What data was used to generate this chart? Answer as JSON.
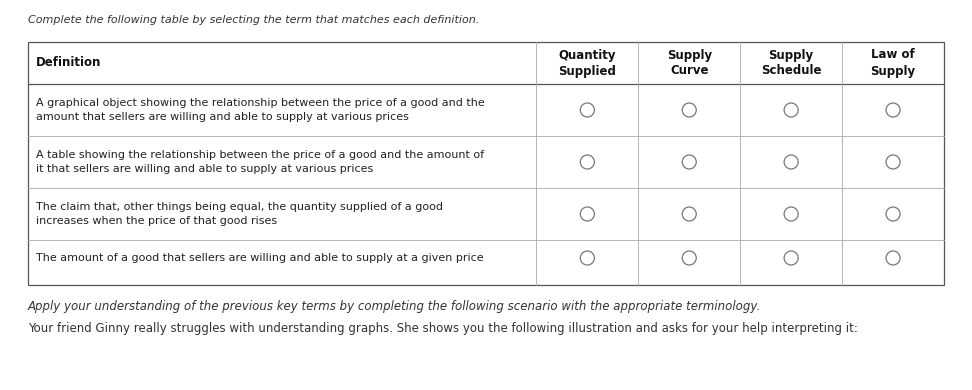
{
  "title_text": "Complete the following table by selecting the term that matches each definition.",
  "footer_text1": "Apply your understanding of the previous key terms by completing the following scenario with the appropriate terminology.",
  "footer_text2": "Your friend Ginny really struggles with understanding graphs. She shows you the following illustration and asks for your help interpreting it:",
  "col_headers": [
    "Definition",
    "Quantity\nSupplied",
    "Supply\nCurve",
    "Supply\nSchedule",
    "Law of\nSupply"
  ],
  "rows": [
    [
      "A graphical object showing the relationship between the price of a good and the",
      "amount that sellers are willing and able to supply at various prices"
    ],
    [
      "A table showing the relationship between the price of a good and the amount of",
      "it that sellers are willing and able to supply at various prices"
    ],
    [
      "The claim that, other things being equal, the quantity supplied of a good",
      "increases when the price of that good rises"
    ],
    [
      "The amount of a good that sellers are willing and able to supply at a given price"
    ]
  ],
  "bg_color": "#ffffff",
  "table_border_color": "#555555",
  "header_border_color": "#555555",
  "row_border_color": "#aaaaaa",
  "circle_ec": "#777777",
  "font_size_title": 8.0,
  "font_size_header": 8.5,
  "font_size_body": 8.0,
  "font_size_footer": 8.5
}
